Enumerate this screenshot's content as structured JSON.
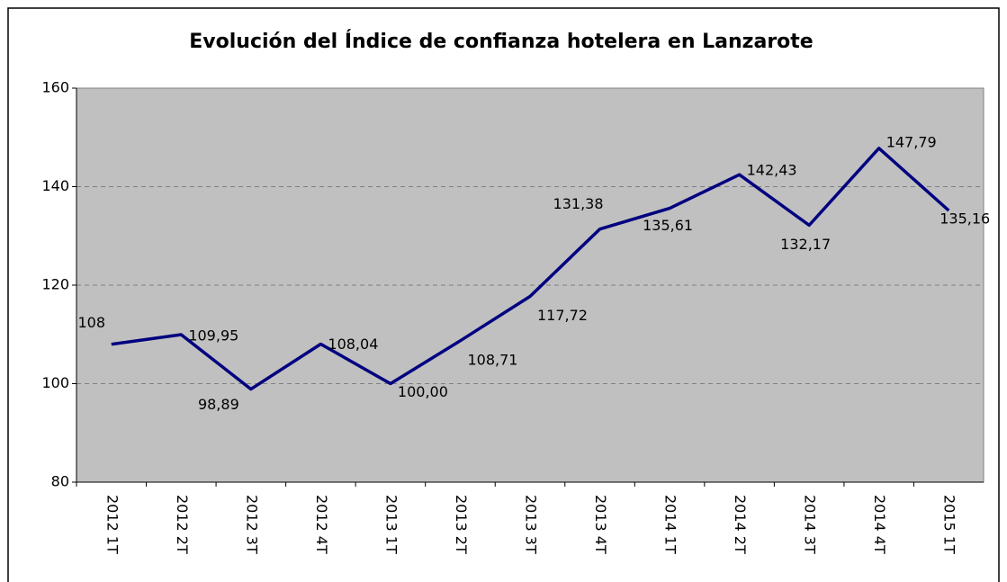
{
  "chart_data": {
    "type": "line",
    "title": "Evolución del Índice de confianza hotelera en Lanzarote",
    "categories": [
      "2012 1T",
      "2012 2T",
      "2012 3T",
      "2012 4T",
      "2013 1T",
      "2013 2T",
      "2013 3T",
      "2013 4T",
      "2014 1T",
      "2014 2T",
      "2014 3T",
      "2014 4T",
      "2015 1T"
    ],
    "series": [
      {
        "name": "Índice de confianza hotelera",
        "color": "#000080",
        "values": [
          108,
          109.95,
          98.89,
          108.04,
          100.0,
          108.71,
          117.72,
          131.38,
          135.61,
          142.43,
          132.17,
          147.79,
          135.16
        ],
        "value_labels": [
          "108",
          "109,95",
          "98,89",
          "108,04",
          "100,00",
          "108,71",
          "117,72",
          "131,38",
          "135,61",
          "142,43",
          "132,17",
          "147,79",
          "135,16"
        ]
      }
    ],
    "ylim": [
      80,
      160
    ],
    "yticks": [
      80,
      100,
      120,
      140,
      160
    ],
    "grid": true
  }
}
